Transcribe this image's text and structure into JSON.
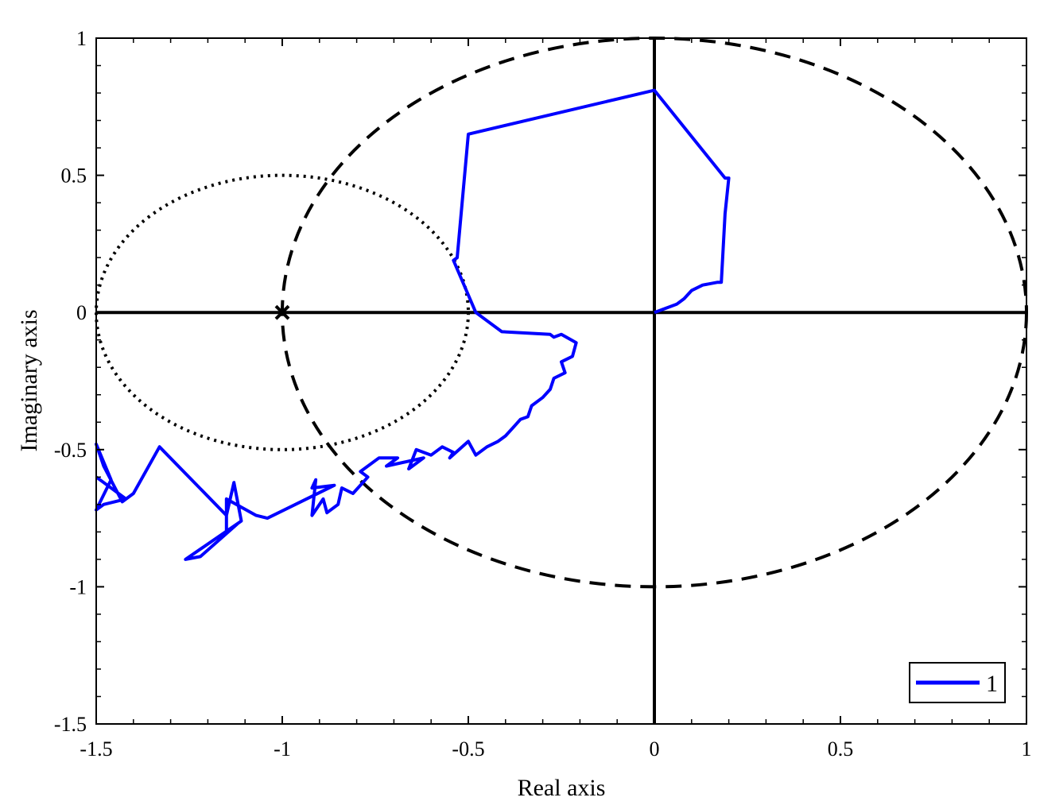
{
  "chart_data": {
    "type": "line",
    "title": "",
    "xlabel": "Real axis",
    "ylabel": "Imaginary axis",
    "xlim": [
      -1.5,
      1
    ],
    "ylim": [
      -1.5,
      1
    ],
    "xticks": [
      -1.5,
      -1,
      -0.5,
      0,
      0.5,
      1
    ],
    "yticks": [
      -1.5,
      -1,
      -0.5,
      0,
      0.5,
      1
    ],
    "xtick_labels": [
      "-1.5",
      "-1",
      "-0.5",
      "0",
      "0.5",
      "1"
    ],
    "ytick_labels": [
      "-1.5",
      "-1",
      "-0.5",
      "0",
      "0.5",
      "1"
    ],
    "grid": false,
    "legend": {
      "position": "bottom-right",
      "entries": [
        "1"
      ]
    },
    "colors": {
      "series": "#0000ff",
      "reference": "#000000"
    },
    "reference_circles": [
      {
        "style": "dashed",
        "center": [
          0,
          0
        ],
        "radius": 1
      },
      {
        "style": "dotted",
        "center": [
          -1,
          0
        ],
        "radius": 0.5
      }
    ],
    "critical_point": {
      "x": -1,
      "y": 0,
      "marker": "x"
    },
    "series": [
      {
        "name": "1",
        "x": [
          0,
          0.02,
          0.06,
          0.08,
          0.1,
          0.13,
          0.17,
          0.18,
          0.19,
          0.2,
          0.19,
          0,
          -0.5,
          -0.53,
          -0.54,
          -0.48,
          -0.41,
          -0.28,
          -0.27,
          -0.25,
          -0.21,
          -0.22,
          -0.25,
          -0.24,
          -0.27,
          -0.28,
          -0.3,
          -0.33,
          -0.34,
          -0.36,
          -0.38,
          -0.4,
          -0.42,
          -0.45,
          -0.48,
          -0.5,
          -0.55,
          -0.54,
          -0.57,
          -0.6,
          -0.64,
          -0.66,
          -0.62,
          -0.72,
          -0.69,
          -0.74,
          -0.79,
          -0.77,
          -0.81,
          -0.84,
          -0.85,
          -0.88,
          -0.89,
          -0.92,
          -0.91,
          -0.92,
          -0.86,
          -1.04,
          -1.07,
          -1.15,
          -1.15,
          -1.12,
          -1.22,
          -1.26,
          -1.11,
          -1.13,
          -1.15,
          -1.33,
          -1.4,
          -1.43,
          -1.48,
          -1.5,
          -1.46,
          -1.5,
          -1.48,
          -1.42,
          -1.48,
          -1.5
        ],
        "y": [
          0,
          0.01,
          0.03,
          0.05,
          0.08,
          0.1,
          0.11,
          0.11,
          0.36,
          0.49,
          0.49,
          0.81,
          0.65,
          0.2,
          0.19,
          0.0,
          -0.07,
          -0.08,
          -0.09,
          -0.08,
          -0.11,
          -0.16,
          -0.18,
          -0.22,
          -0.24,
          -0.28,
          -0.31,
          -0.34,
          -0.38,
          -0.39,
          -0.42,
          -0.45,
          -0.47,
          -0.49,
          -0.52,
          -0.47,
          -0.53,
          -0.51,
          -0.49,
          -0.52,
          -0.5,
          -0.57,
          -0.53,
          -0.56,
          -0.53,
          -0.53,
          -0.58,
          -0.6,
          -0.66,
          -0.64,
          -0.7,
          -0.73,
          -0.68,
          -0.74,
          -0.61,
          -0.64,
          -0.63,
          -0.75,
          -0.74,
          -0.68,
          -0.8,
          -0.77,
          -0.89,
          -0.9,
          -0.76,
          -0.62,
          -0.74,
          -0.49,
          -0.66,
          -0.69,
          -0.56,
          -0.48,
          -0.61,
          -0.72,
          -0.7,
          -0.68,
          -0.62,
          -0.6
        ]
      }
    ]
  }
}
